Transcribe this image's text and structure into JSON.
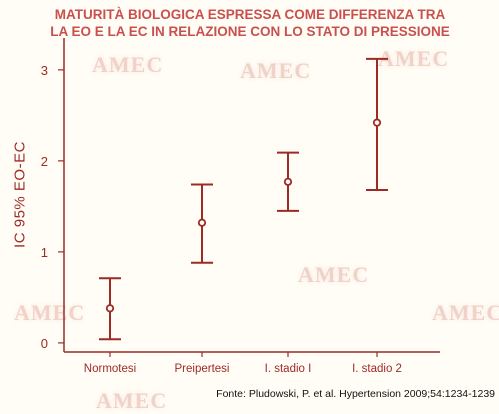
{
  "watermark_text": "AMEC",
  "title_lines": [
    "MATURITÀ BIOLOGICA ESPRESSA COME DIFFERENZA TRA",
    "LA EO E LA EC  IN RELAZIONE CON LO STATO DI PRESSIONE"
  ],
  "source": "Fonte: Pludowski, P. et al. Hypertension 2009;54:1234-1239",
  "colors": {
    "title": "#c9504d",
    "marks": "#9e2a26",
    "axis": "#9e2a26",
    "labels": "#9e2a26",
    "watermark": "#f0d2c8"
  },
  "chart_data": {
    "type": "errorbar",
    "title": "",
    "xlabel": "",
    "ylabel": "IC 95% EO-EC",
    "categories": [
      "Normotesi",
      "Preipertesi",
      "I. stadio I",
      "I. stadio 2"
    ],
    "mean": [
      0.38,
      1.32,
      1.77,
      2.42
    ],
    "lower": [
      0.04,
      0.88,
      1.45,
      1.68
    ],
    "upper": [
      0.71,
      1.74,
      2.09,
      3.12
    ],
    "ylim": [
      -0.1,
      3.35
    ],
    "yticks": [
      0,
      1,
      2,
      3
    ],
    "grid": false,
    "legend": "none"
  }
}
